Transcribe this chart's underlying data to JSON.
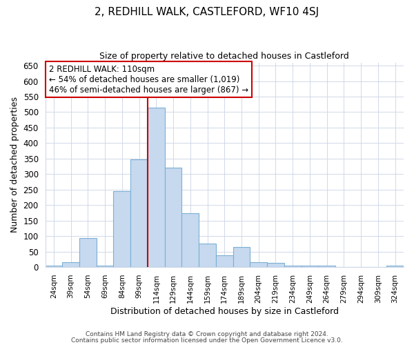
{
  "title": "2, REDHILL WALK, CASTLEFORD, WF10 4SJ",
  "subtitle": "Size of property relative to detached houses in Castleford",
  "xlabel": "Distribution of detached houses by size in Castleford",
  "ylabel": "Number of detached properties",
  "bar_labels": [
    "24sqm",
    "39sqm",
    "54sqm",
    "69sqm",
    "84sqm",
    "99sqm",
    "114sqm",
    "129sqm",
    "144sqm",
    "159sqm",
    "174sqm",
    "189sqm",
    "204sqm",
    "219sqm",
    "234sqm",
    "249sqm",
    "264sqm",
    "279sqm",
    "294sqm",
    "309sqm",
    "324sqm"
  ],
  "bar_heights": [
    5,
    16,
    93,
    5,
    246,
    348,
    514,
    320,
    174,
    75,
    37,
    65,
    16,
    13,
    5,
    5,
    5,
    0,
    0,
    0,
    4
  ],
  "bar_color": "#c6d9ef",
  "bar_edge_color": "#7bafd4",
  "marker_bin_index": 5,
  "marker_color": "#cc0000",
  "ylim": [
    0,
    660
  ],
  "yticks": [
    0,
    50,
    100,
    150,
    200,
    250,
    300,
    350,
    400,
    450,
    500,
    550,
    600,
    650
  ],
  "annotation_title": "2 REDHILL WALK: 110sqm",
  "annotation_line1": "← 54% of detached houses are smaller (1,019)",
  "annotation_line2": "46% of semi-detached houses are larger (867) →",
  "annotation_box_color": "#ffffff",
  "annotation_box_edge": "#cc0000",
  "footer1": "Contains HM Land Registry data © Crown copyright and database right 2024.",
  "footer2": "Contains public sector information licensed under the Open Government Licence v3.0.",
  "background_color": "#ffffff",
  "grid_color": "#d0d8e8"
}
